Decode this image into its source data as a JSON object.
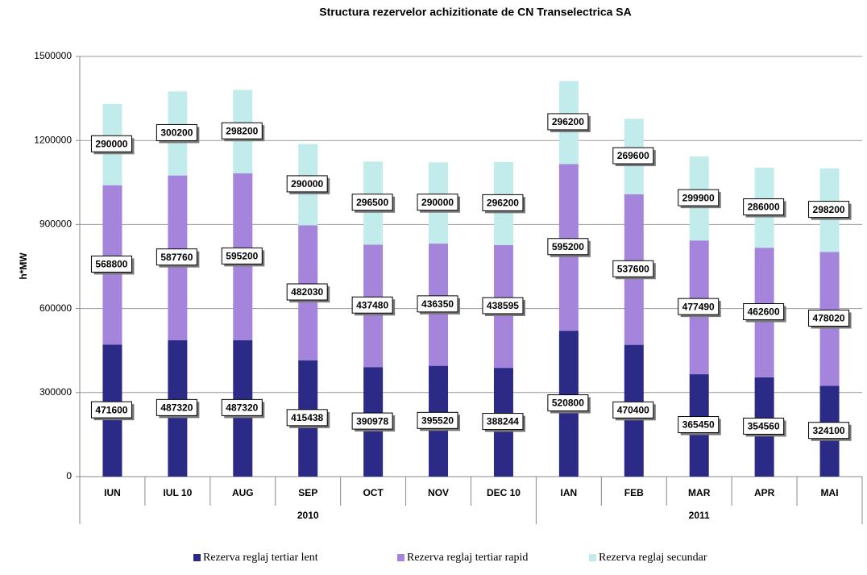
{
  "chart_data": {
    "type": "stacked-bar",
    "title": "Structura rezervelor achizitionate de CN Transelectrica SA",
    "y_label": "h*MW",
    "groups": [
      {
        "label": "2010",
        "categories": [
          "IUN",
          "IUL 10",
          "AUG",
          "SEP",
          "OCT",
          "NOV",
          "DEC 10"
        ]
      },
      {
        "label": "2011",
        "categories": [
          "IAN",
          "FEB",
          "MAR",
          "APR",
          "MAI"
        ]
      }
    ],
    "series": [
      {
        "name": "Rezerva reglaj tertiar lent",
        "color": "#2b2a86",
        "values": [
          471600,
          487320,
          487320,
          415438,
          390978,
          395520,
          388244,
          520800,
          470400,
          365450,
          354560,
          324100
        ]
      },
      {
        "name": "Rezerva reglaj tertiar rapid",
        "color": "#a585dc",
        "values": [
          568800,
          587760,
          595200,
          482030,
          437480,
          436350,
          438595,
          595200,
          537600,
          477490,
          462600,
          478020
        ]
      },
      {
        "name": "Rezerva reglaj secundar",
        "color": "#c2ecec",
        "values": [
          290000,
          300200,
          298200,
          290000,
          296500,
          290000,
          296200,
          296200,
          269600,
          299900,
          286000,
          298200
        ]
      }
    ],
    "ylim": [
      0,
      1500000
    ],
    "yticks": [
      0,
      300000,
      600000,
      900000,
      1200000,
      1500000
    ],
    "grid": true
  }
}
